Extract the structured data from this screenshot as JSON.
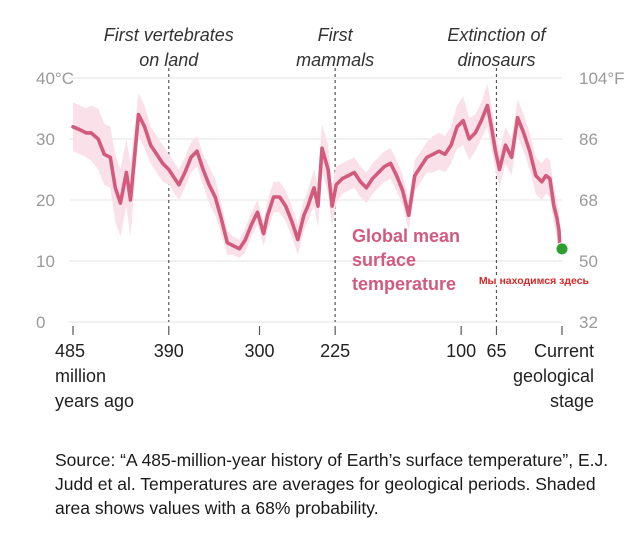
{
  "chart_data": {
    "type": "line",
    "x_axis": {
      "ticks": [
        {
          "value": 485,
          "label": "485",
          "sublabel": [
            "million",
            "years ago"
          ]
        },
        {
          "value": 390,
          "label": "390"
        },
        {
          "value": 300,
          "label": "300"
        },
        {
          "value": 225,
          "label": "225"
        },
        {
          "value": 100,
          "label": "100"
        },
        {
          "value": 65,
          "label": "65"
        },
        {
          "value": 0,
          "label": "Current",
          "sublabel": [
            "geological",
            "stage"
          ]
        }
      ],
      "range": [
        485,
        0
      ]
    },
    "y_axis_left": {
      "ticks": [
        {
          "value": 0,
          "label": "0"
        },
        {
          "value": 10,
          "label": "10"
        },
        {
          "value": 20,
          "label": "20"
        },
        {
          "value": 30,
          "label": "30"
        },
        {
          "value": 40,
          "label": "40°C"
        }
      ],
      "range": [
        0,
        40
      ]
    },
    "y_axis_right": {
      "ticks": [
        {
          "value": 0,
          "label": "32"
        },
        {
          "value": 10,
          "label": "50"
        },
        {
          "value": 20,
          "label": "68"
        },
        {
          "value": 30,
          "label": "86"
        },
        {
          "value": 40,
          "label": "104°F"
        }
      ]
    },
    "events": [
      {
        "x": 390,
        "label": [
          "First vertebrates",
          "on land"
        ]
      },
      {
        "x": 225,
        "label": [
          "First",
          "mammals"
        ]
      },
      {
        "x": 65,
        "label": [
          "Extinction of",
          "dinosaurs"
        ]
      }
    ],
    "series": [
      {
        "name": "Global mean surface temperature",
        "label_lines": [
          "Global mean",
          "surface",
          "temperature"
        ],
        "color": "#d25b7d",
        "band_color": "#fae0e8",
        "x": [
          485,
          478,
          472,
          467,
          460,
          454,
          448,
          443,
          438,
          432,
          428,
          420,
          414,
          408,
          402,
          396,
          390,
          384,
          380,
          374,
          368,
          362,
          356,
          350,
          344,
          338,
          332,
          326,
          320,
          314,
          308,
          302,
          296,
          292,
          286,
          280,
          274,
          268,
          262,
          256,
          252,
          246,
          242,
          238,
          232,
          228,
          224,
          218,
          212,
          206,
          200,
          194,
          188,
          182,
          176,
          170,
          164,
          158,
          152,
          146,
          140,
          134,
          128,
          122,
          116,
          110,
          104,
          98,
          92,
          86,
          80,
          74,
          70,
          66,
          62,
          56,
          50,
          44,
          38,
          32,
          26,
          20,
          16,
          12,
          8,
          5,
          3,
          2
        ],
        "values": [
          32,
          31.5,
          31,
          31,
          30,
          27.5,
          27,
          22,
          19.5,
          24.5,
          20,
          34,
          32,
          29,
          27.5,
          26,
          25,
          23.5,
          22.5,
          24.5,
          27,
          28,
          25,
          22.5,
          20.5,
          17,
          13,
          12.5,
          12,
          13.5,
          16,
          18,
          14.5,
          17.5,
          20.5,
          20.5,
          19,
          16.5,
          13.5,
          17.5,
          19,
          22,
          19,
          28.5,
          25,
          19,
          22.5,
          23.5,
          24,
          24.5,
          23,
          22,
          23.5,
          24.5,
          25.5,
          26,
          24,
          21.5,
          17.5,
          24,
          25.5,
          27,
          27.5,
          28,
          27.5,
          29,
          32,
          33,
          30,
          31,
          33,
          35.5,
          32,
          28,
          25,
          29,
          27,
          33.5,
          31,
          28,
          24,
          23,
          24,
          23.5,
          19,
          17,
          15,
          12
        ],
        "band_width": [
          4,
          4,
          4,
          4.5,
          5,
          5,
          5,
          5.5,
          5.5,
          5.5,
          6,
          3.5,
          3.5,
          3,
          3,
          3,
          2.5,
          2.5,
          2.5,
          2.5,
          2.5,
          2.5,
          2.5,
          3,
          3,
          2.5,
          2,
          1.5,
          1.5,
          2,
          2,
          2,
          2,
          2.5,
          2.5,
          2.5,
          2.5,
          2.5,
          2.5,
          2.5,
          2.5,
          3,
          3.5,
          4,
          4,
          3.5,
          3,
          2.5,
          2.5,
          2.5,
          2.5,
          2.5,
          2.5,
          2.5,
          2.5,
          2.5,
          2.5,
          2.5,
          2.5,
          2.5,
          2.5,
          2.5,
          3,
          3,
          3,
          3,
          3.5,
          4,
          3.5,
          3,
          3,
          3.5,
          3.5,
          3,
          3,
          3,
          3,
          3,
          3,
          3,
          3,
          3,
          3,
          3,
          3,
          3,
          3,
          2
        ]
      }
    ],
    "marker": {
      "x": 0,
      "y": 11,
      "color": "#2e9e2e",
      "label": "Мы находимся здесь"
    }
  },
  "source_text": "Source: “A 485-million-year history of Earth’s surface temperature”, E.J. Judd et al. Temperatures are averages for geological periods. Shaded area shows values with a 68% probability."
}
